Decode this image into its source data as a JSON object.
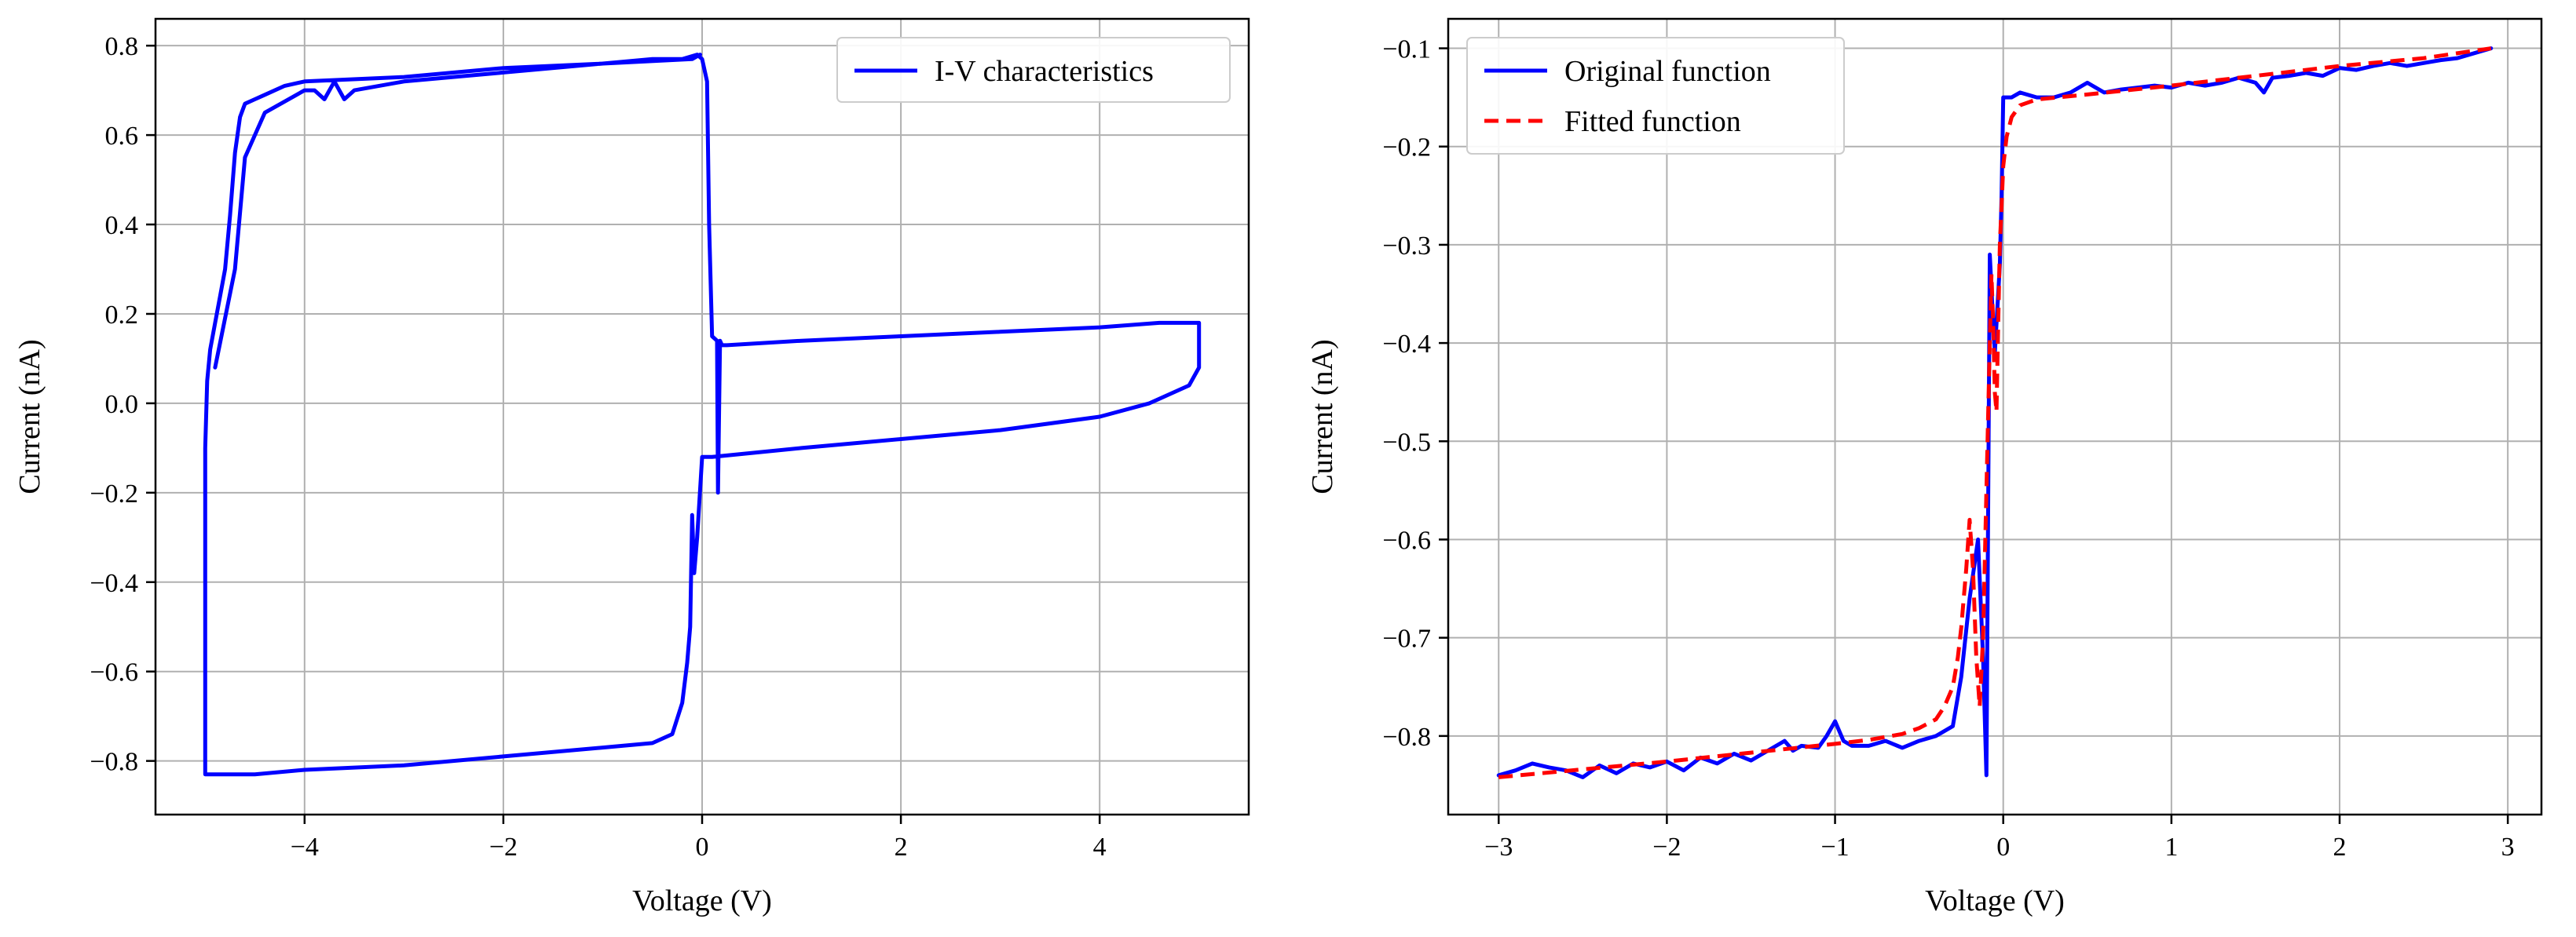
{
  "colors": {
    "original": "#0000ff",
    "fitted": "#ff0000",
    "grid": "#b0b0b0"
  },
  "chart_data": [
    {
      "type": "line",
      "title": "",
      "xlabel": "Voltage (V)",
      "ylabel": "Current (nA)",
      "xlim": [
        -5.5,
        5.5
      ],
      "ylim": [
        -0.92,
        0.86
      ],
      "xticks": [
        -4,
        -2,
        0,
        2,
        4
      ],
      "xtick_labels": [
        "−4",
        "−2",
        "0",
        "2",
        "4"
      ],
      "yticks": [
        -0.8,
        -0.6,
        -0.4,
        -0.2,
        0.0,
        0.2,
        0.4,
        0.6,
        0.8
      ],
      "ytick_labels": [
        "−0.8",
        "−0.6",
        "−0.4",
        "−0.2",
        "0.0",
        "0.2",
        "0.4",
        "0.6",
        "0.8"
      ],
      "grid": true,
      "legend_position": "top-right",
      "series": [
        {
          "name": "I-V characteristics",
          "color": "#0000ff",
          "style": "solid",
          "x": [
            -4.9,
            -4.7,
            -4.6,
            -4.4,
            -4.0,
            -3.9,
            -3.8,
            -3.7,
            -3.6,
            -3.5,
            -3.0,
            -2.0,
            -1.0,
            -0.5,
            -0.2,
            -0.05,
            0.0,
            0.05,
            0.07,
            0.1,
            0.15,
            0.16,
            0.18,
            0.2,
            0.25,
            1.0,
            2.0,
            3.0,
            4.0,
            4.6,
            4.85,
            4.95,
            5.0,
            5.0,
            4.9,
            4.7,
            4.5,
            4.0,
            3.0,
            2.0,
            1.0,
            0.1,
            0.0,
            -0.05,
            -0.08,
            -0.1,
            -0.12,
            -0.15,
            -0.2,
            -0.3,
            -0.5,
            -1.0,
            -2.0,
            -3.0,
            -4.0,
            -4.5,
            -5.0,
            -5.0,
            -5.0,
            -5.0,
            -4.98,
            -4.95,
            -4.9,
            -4.85,
            -4.8,
            -4.75,
            -4.7,
            -4.65,
            -4.6,
            -4.5,
            -4.4,
            -4.2,
            -4.0,
            -3.0,
            -2.0,
            -1.0,
            -0.1,
            -0.02
          ],
          "y": [
            0.08,
            0.3,
            0.55,
            0.65,
            0.7,
            0.7,
            0.68,
            0.72,
            0.68,
            0.7,
            0.72,
            0.74,
            0.76,
            0.77,
            0.77,
            0.78,
            0.77,
            0.72,
            0.4,
            0.15,
            0.14,
            -0.2,
            0.14,
            0.13,
            0.13,
            0.14,
            0.15,
            0.16,
            0.17,
            0.18,
            0.18,
            0.18,
            0.18,
            0.08,
            0.04,
            0.02,
            0.0,
            -0.03,
            -0.06,
            -0.08,
            -0.1,
            -0.12,
            -0.12,
            -0.3,
            -0.38,
            -0.25,
            -0.5,
            -0.58,
            -0.67,
            -0.74,
            -0.76,
            -0.77,
            -0.79,
            -0.81,
            -0.82,
            -0.83,
            -0.83,
            -0.6,
            -0.35,
            -0.1,
            0.05,
            0.12,
            0.18,
            0.24,
            0.3,
            0.42,
            0.56,
            0.64,
            0.67,
            0.68,
            0.69,
            0.71,
            0.72,
            0.73,
            0.75,
            0.76,
            0.77,
            0.78
          ]
        }
      ]
    },
    {
      "type": "line",
      "title": "",
      "xlabel": "Voltage (V)",
      "ylabel": "Current (nA)",
      "xlim": [
        -3.3,
        3.2
      ],
      "ylim": [
        -0.88,
        -0.07
      ],
      "xticks": [
        -3,
        -2,
        -1,
        0,
        1,
        2,
        3
      ],
      "xtick_labels": [
        "−3",
        "−2",
        "−1",
        "0",
        "1",
        "2",
        "3"
      ],
      "yticks": [
        -0.8,
        -0.7,
        -0.6,
        -0.5,
        -0.4,
        -0.3,
        -0.2,
        -0.1
      ],
      "ytick_labels": [
        "−0.8",
        "−0.7",
        "−0.6",
        "−0.5",
        "−0.4",
        "−0.3",
        "−0.2",
        "−0.1"
      ],
      "grid": true,
      "legend_position": "top-left",
      "series": [
        {
          "name": "Original function",
          "color": "#0000ff",
          "style": "solid",
          "x": [
            -3.0,
            -2.9,
            -2.8,
            -2.7,
            -2.6,
            -2.5,
            -2.4,
            -2.3,
            -2.2,
            -2.1,
            -2.0,
            -1.9,
            -1.8,
            -1.7,
            -1.6,
            -1.5,
            -1.4,
            -1.3,
            -1.25,
            -1.2,
            -1.1,
            -1.05,
            -1.0,
            -0.95,
            -0.9,
            -0.8,
            -0.7,
            -0.6,
            -0.5,
            -0.4,
            -0.3,
            -0.25,
            -0.2,
            -0.15,
            -0.12,
            -0.1,
            -0.08,
            -0.06,
            -0.05,
            -0.03,
            -0.02,
            -0.01,
            0.0,
            0.05,
            0.1,
            0.2,
            0.3,
            0.4,
            0.5,
            0.6,
            0.7,
            0.8,
            0.9,
            1.0,
            1.1,
            1.2,
            1.3,
            1.4,
            1.5,
            1.55,
            1.6,
            1.7,
            1.8,
            1.9,
            2.0,
            2.1,
            2.2,
            2.3,
            2.4,
            2.5,
            2.6,
            2.7,
            2.8,
            2.9
          ],
          "y": [
            -0.84,
            -0.835,
            -0.828,
            -0.832,
            -0.835,
            -0.842,
            -0.83,
            -0.838,
            -0.828,
            -0.832,
            -0.826,
            -0.835,
            -0.822,
            -0.828,
            -0.818,
            -0.825,
            -0.815,
            -0.805,
            -0.815,
            -0.81,
            -0.812,
            -0.8,
            -0.785,
            -0.805,
            -0.81,
            -0.81,
            -0.805,
            -0.812,
            -0.805,
            -0.8,
            -0.79,
            -0.74,
            -0.66,
            -0.6,
            -0.72,
            -0.84,
            -0.31,
            -0.38,
            -0.41,
            -0.35,
            -0.32,
            -0.25,
            -0.15,
            -0.15,
            -0.145,
            -0.15,
            -0.15,
            -0.145,
            -0.135,
            -0.145,
            -0.142,
            -0.14,
            -0.138,
            -0.14,
            -0.135,
            -0.138,
            -0.135,
            -0.13,
            -0.135,
            -0.145,
            -0.13,
            -0.128,
            -0.125,
            -0.128,
            -0.12,
            -0.122,
            -0.118,
            -0.115,
            -0.118,
            -0.115,
            -0.112,
            -0.11,
            -0.105,
            -0.1
          ]
        },
        {
          "name": "Fitted function",
          "color": "#ff0000",
          "style": "dashed",
          "x": [
            -3.0,
            -2.5,
            -2.0,
            -1.5,
            -1.0,
            -0.8,
            -0.6,
            -0.5,
            -0.4,
            -0.35,
            -0.3,
            -0.27,
            -0.25,
            -0.22,
            -0.2,
            -0.18,
            -0.16,
            -0.14,
            -0.12,
            -0.1,
            -0.08,
            -0.07,
            -0.06,
            -0.05,
            -0.04,
            -0.03,
            -0.02,
            -0.01,
            0.0,
            0.02,
            0.05,
            0.1,
            0.2,
            0.5,
            1.0,
            1.5,
            2.0,
            2.5,
            2.9
          ],
          "y": [
            -0.842,
            -0.834,
            -0.826,
            -0.817,
            -0.808,
            -0.804,
            -0.798,
            -0.792,
            -0.783,
            -0.77,
            -0.75,
            -0.72,
            -0.69,
            -0.63,
            -0.58,
            -0.63,
            -0.72,
            -0.77,
            -0.7,
            -0.55,
            -0.4,
            -0.33,
            -0.38,
            -0.45,
            -0.47,
            -0.38,
            -0.3,
            -0.26,
            -0.22,
            -0.19,
            -0.17,
            -0.158,
            -0.152,
            -0.147,
            -0.138,
            -0.128,
            -0.118,
            -0.11,
            -0.1
          ]
        }
      ]
    }
  ]
}
